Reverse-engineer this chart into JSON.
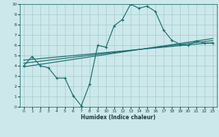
{
  "xlabel": "Humidex (Indice chaleur)",
  "ylabel": "",
  "bg_color": "#cce8ea",
  "grid_color": "#aacdd0",
  "line_color": "#1a6e6e",
  "xlim": [
    -0.5,
    23.5
  ],
  "ylim": [
    0,
    10
  ],
  "xticks": [
    0,
    1,
    2,
    3,
    4,
    5,
    6,
    7,
    8,
    9,
    10,
    11,
    12,
    13,
    14,
    15,
    16,
    17,
    18,
    19,
    20,
    21,
    22,
    23
  ],
  "yticks": [
    0,
    1,
    2,
    3,
    4,
    5,
    6,
    7,
    8,
    9,
    10
  ],
  "main_x": [
    0,
    1,
    2,
    3,
    4,
    5,
    6,
    7,
    8,
    9,
    10,
    11,
    12,
    13,
    14,
    15,
    16,
    17,
    18,
    19,
    20,
    21,
    22,
    23
  ],
  "main_y": [
    4.0,
    4.9,
    4.0,
    3.8,
    2.8,
    2.8,
    1.1,
    0.1,
    2.2,
    6.0,
    5.8,
    7.9,
    8.5,
    10.0,
    9.6,
    9.8,
    9.3,
    7.5,
    6.5,
    6.1,
    6.0,
    6.4,
    6.2,
    6.2
  ],
  "line1_x": [
    0,
    23
  ],
  "line1_y": [
    3.9,
    6.65
  ],
  "line2_x": [
    0,
    23
  ],
  "line2_y": [
    4.25,
    6.45
  ],
  "line3_x": [
    0,
    23
  ],
  "line3_y": [
    4.55,
    6.25
  ],
  "xlabel_fontsize": 5.5,
  "tick_fontsize": 4.5
}
